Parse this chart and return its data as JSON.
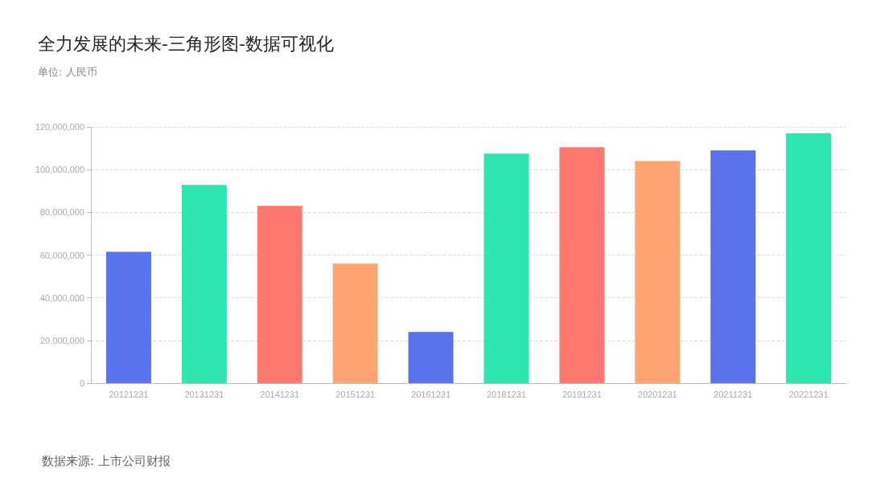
{
  "chart_data": {
    "type": "bar",
    "title": "全力发展的未来-三角形图-数据可视化",
    "subtitle": "单位: 人民币",
    "categories": [
      "20121231",
      "20131231",
      "20141231",
      "20151231",
      "20161231",
      "20181231",
      "20191231",
      "20201231",
      "20211231",
      "20221231"
    ],
    "values": [
      61500000,
      92800000,
      83000000,
      56000000,
      24000000,
      107500000,
      110500000,
      104000000,
      109000000,
      117000000
    ],
    "colors": [
      "#5b72ee",
      "#2ee6b0",
      "#ff7870",
      "#ffa473",
      "#5b72ee",
      "#2ee6b0",
      "#ff7870",
      "#ffa473",
      "#5b72ee",
      "#2ee6b0"
    ],
    "ylim": [
      0,
      120000000
    ],
    "yticks": [
      0,
      {
        "value": 20000000,
        "label": "20,000,000"
      },
      {
        "value": 40000000,
        "label": "40,000,000"
      },
      {
        "value": 60000000,
        "label": "60,000,000"
      },
      {
        "value": 80000000,
        "label": "80,000,000"
      },
      {
        "value": 100000000,
        "label": "100,000,000"
      },
      {
        "value": 120000000,
        "label": "120,000,000"
      }
    ],
    "grid": "y",
    "annotations": [
      "数据来源: 上市公司财报"
    ]
  }
}
